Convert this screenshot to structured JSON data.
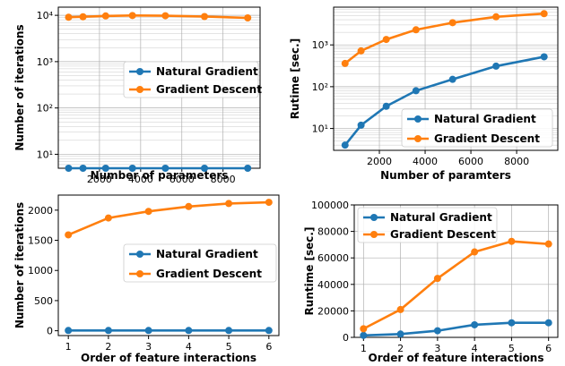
{
  "colors": {
    "natural": "#1f77b4",
    "gradient": "#ff7f0e"
  },
  "chart_data": [
    {
      "type": "line",
      "yscale": "log",
      "xlabel": "Number of parameters",
      "ylabel": "Number of iterations",
      "xlim": [
        0,
        9800
      ],
      "ylim": [
        5,
        15000
      ],
      "xticks": [
        2000,
        4000,
        6000,
        8000
      ],
      "yticks": [
        10,
        100,
        1000,
        10000
      ],
      "yticklabels": [
        "10¹",
        "10²",
        "10³",
        "10⁴"
      ],
      "grid": true,
      "legend_position": "center-right",
      "x": [
        500,
        1200,
        2300,
        3600,
        5200,
        7100,
        9200
      ],
      "series": [
        {
          "name": "Natural Gradient",
          "color": "#1f77b4",
          "values": [
            5,
            5,
            5,
            5,
            5,
            5,
            5
          ]
        },
        {
          "name": "Gradient Descent",
          "color": "#ff7f0e",
          "values": [
            9100,
            9300,
            9700,
            9900,
            9800,
            9400,
            8800
          ]
        }
      ]
    },
    {
      "type": "line",
      "yscale": "log",
      "xlabel": "Number of paramters",
      "ylabel": "Rutime [sec.]",
      "xlim": [
        0,
        9800
      ],
      "ylim": [
        3,
        8000
      ],
      "xticks": [
        2000,
        4000,
        6000,
        8000
      ],
      "yticks": [
        10,
        100,
        1000
      ],
      "yticklabels": [
        "10¹",
        "10²",
        "10³"
      ],
      "grid": true,
      "legend_position": "lower-right",
      "x": [
        500,
        1200,
        2300,
        3600,
        5200,
        7100,
        9200
      ],
      "series": [
        {
          "name": "Natural Gradient",
          "color": "#1f77b4",
          "values": [
            4,
            12,
            34,
            80,
            150,
            310,
            520
          ]
        },
        {
          "name": "Gradient Descent",
          "color": "#ff7f0e",
          "values": [
            360,
            720,
            1350,
            2300,
            3400,
            4700,
            5600
          ]
        }
      ]
    },
    {
      "type": "line",
      "yscale": "linear",
      "xlabel": "Order of feature interactions",
      "ylabel": "Number of iterations",
      "xlim": [
        0.75,
        6.25
      ],
      "ylim": [
        -80,
        2250
      ],
      "xticks": [
        1,
        2,
        3,
        4,
        5,
        6
      ],
      "yticks": [
        0,
        500,
        1000,
        1500,
        2000
      ],
      "grid": false,
      "legend_position": "center-right",
      "x": [
        1,
        2,
        3,
        4,
        5,
        6
      ],
      "series": [
        {
          "name": "Natural Gradient",
          "color": "#1f77b4",
          "values": [
            5,
            5,
            5,
            5,
            5,
            5
          ]
        },
        {
          "name": "Gradient Descent",
          "color": "#ff7f0e",
          "values": [
            1590,
            1870,
            1980,
            2060,
            2110,
            2130
          ]
        }
      ]
    },
    {
      "type": "line",
      "yscale": "linear",
      "xlabel": "Order of feature interactions",
      "ylabel": "Runtime [sec.]",
      "xlim": [
        0.75,
        6.25
      ],
      "ylim": [
        0,
        100000
      ],
      "xticks": [
        1,
        2,
        3,
        4,
        5,
        6
      ],
      "yticks": [
        0,
        20000,
        40000,
        60000,
        80000,
        100000
      ],
      "grid": true,
      "legend_position": "upper-left",
      "x": [
        1,
        2,
        3,
        4,
        5,
        6
      ],
      "series": [
        {
          "name": "Natural Gradient",
          "color": "#1f77b4",
          "values": [
            1500,
            2500,
            5000,
            9500,
            11000,
            11000
          ]
        },
        {
          "name": "Gradient Descent",
          "color": "#ff7f0e",
          "values": [
            6500,
            21000,
            44500,
            64500,
            72500,
            70500
          ]
        }
      ]
    }
  ]
}
